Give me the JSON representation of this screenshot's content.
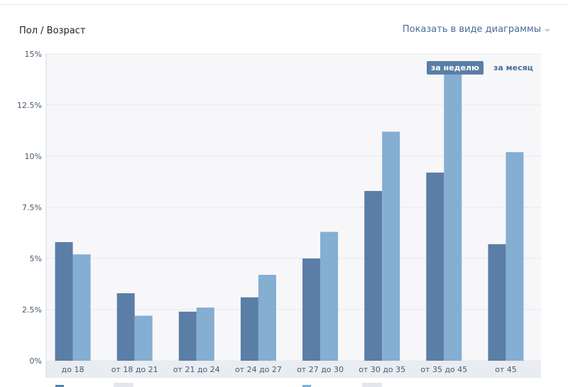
{
  "header": {
    "title": "Пол / Возраст",
    "view_toggle_label": "Показать в виде диаграммы"
  },
  "period": {
    "week_label": "за неделю",
    "month_label": "за месяц",
    "selected": "week"
  },
  "colors": {
    "series_dark": "#5b7ea6",
    "series_light": "#84aed2",
    "plot_bg": "#f7f7fa",
    "axis_band": "#e9ecf1",
    "grid": "#e6e8ec"
  },
  "chart_data": {
    "type": "bar",
    "categories": [
      "до 18",
      "от 18 до 21",
      "от 21 до 24",
      "от 24 до 27",
      "от 27 до 30",
      "от 30 до 35",
      "от 35 до 45",
      "от 45"
    ],
    "series": [
      {
        "values": [
          5.8,
          3.3,
          2.4,
          3.1,
          5.0,
          8.3,
          9.2,
          5.7
        ]
      },
      {
        "values": [
          5.2,
          2.2,
          2.6,
          4.2,
          6.3,
          11.2,
          14.2,
          10.2
        ]
      }
    ],
    "ylim": [
      0,
      15
    ],
    "yticks": [
      "0%",
      "2.5%",
      "5%",
      "7.5%",
      "10%",
      "12.5%",
      "15%"
    ],
    "ytick_values": [
      0,
      2.5,
      5,
      7.5,
      10,
      12.5,
      15
    ],
    "grid": true
  }
}
